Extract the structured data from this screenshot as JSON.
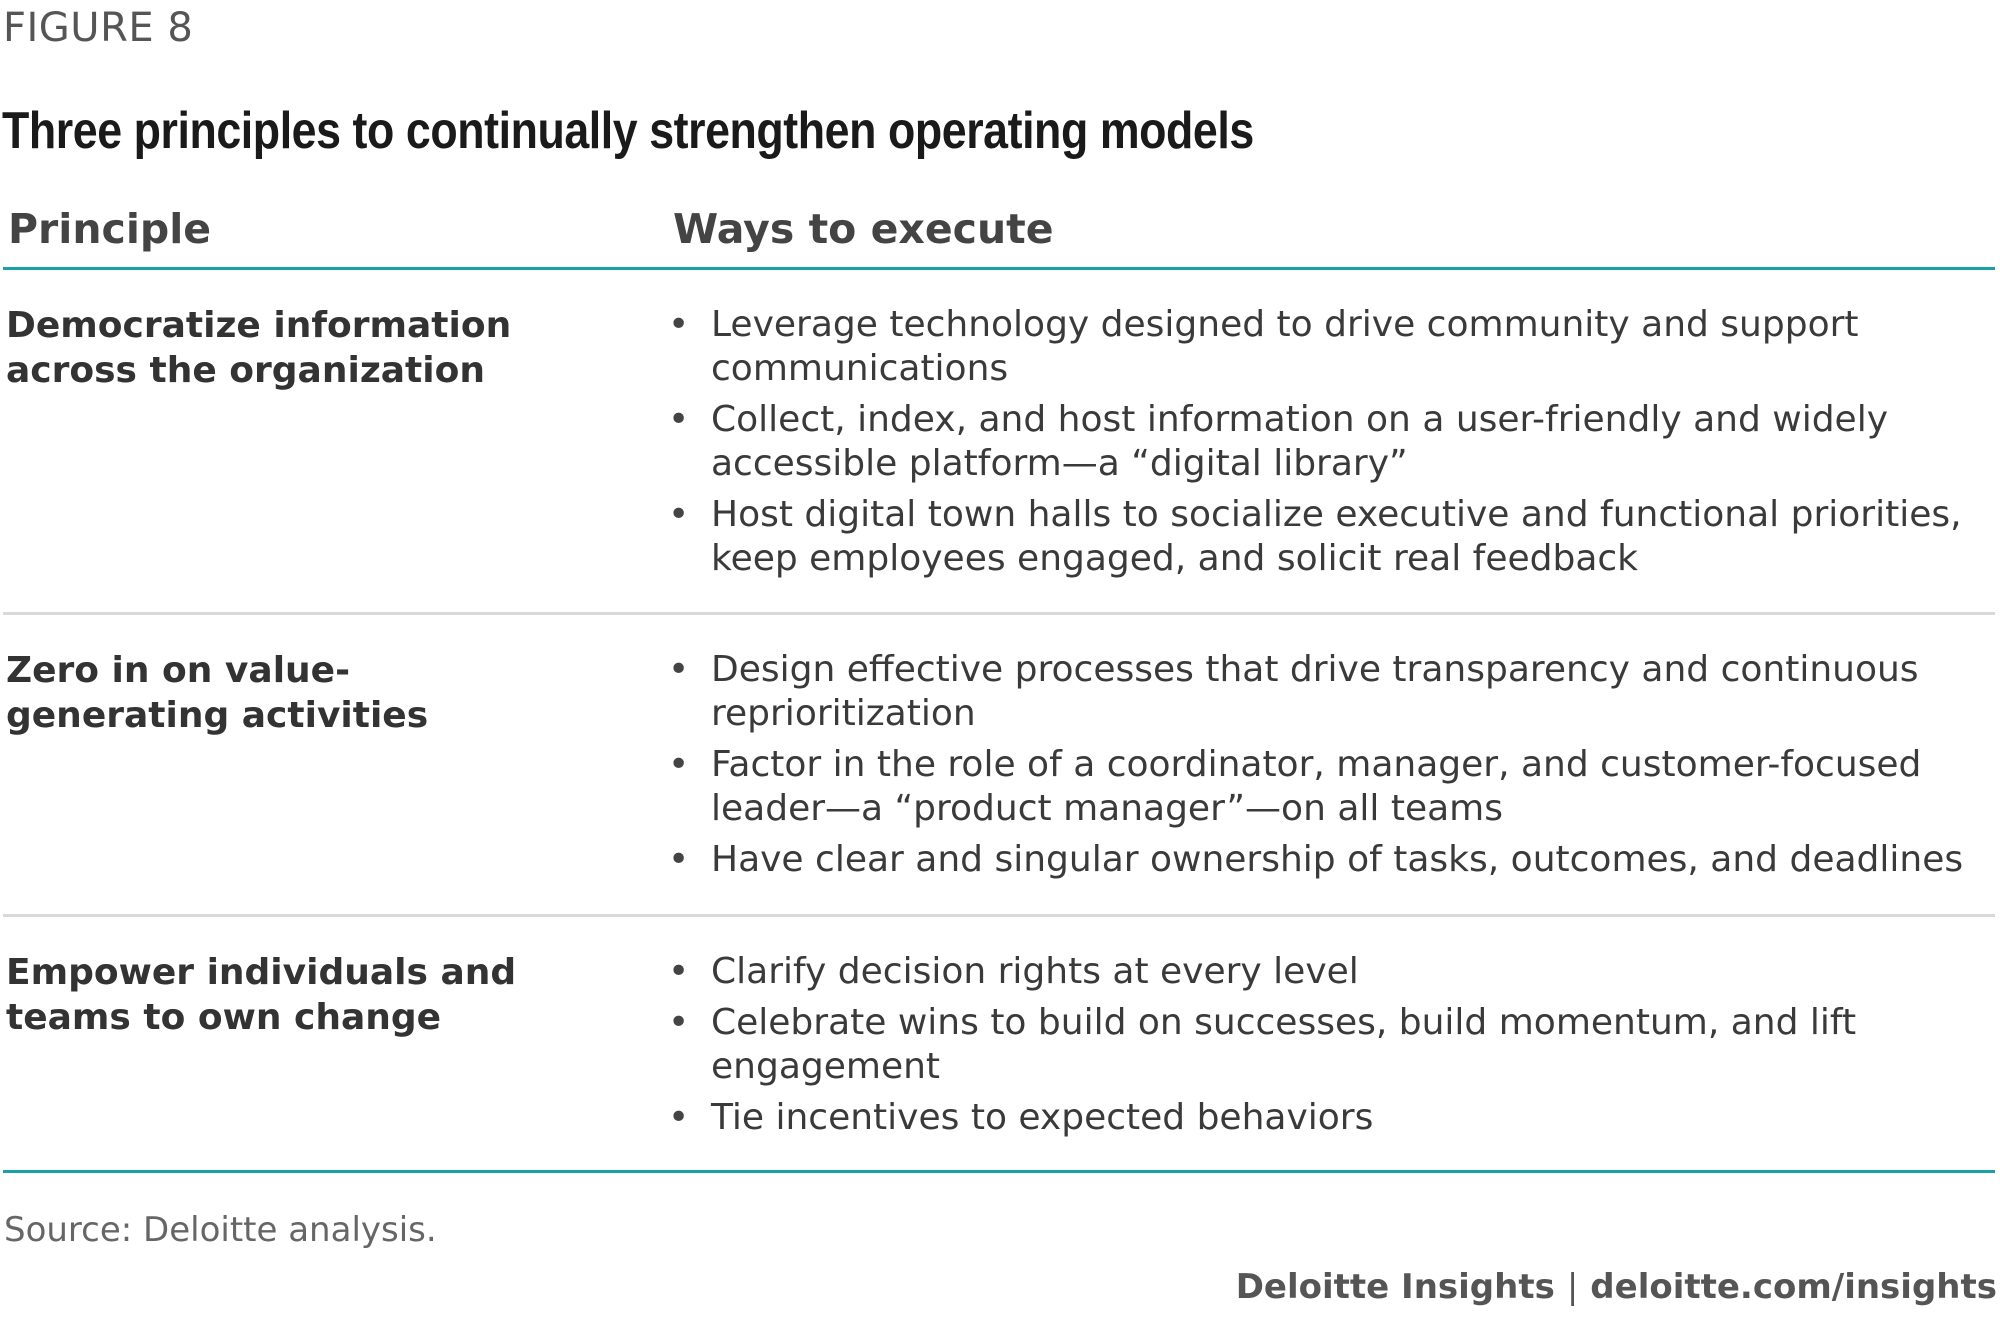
{
  "figure": {
    "label": "FIGURE 8",
    "title": "Three principles to continually strengthen operating models"
  },
  "table": {
    "headers": {
      "principle": "Principle",
      "ways": "Ways to execute"
    },
    "rows": [
      {
        "principle": "Democratize information across the organization",
        "ways": [
          "Leverage technology designed to drive community and support communications",
          "Collect, index, and host information on a user-friendly and widely accessible platform—a “digital library”",
          "Host digital town halls to socialize executive and functional priorities, keep employees engaged, and solicit real feedback"
        ]
      },
      {
        "principle": "Zero in on value-generating activities",
        "ways": [
          "Design effective processes that drive transparency and continuous reprioritization",
          "Factor in the role of a coordinator, manager, and customer-focused leader—a “product manager”—on all teams",
          "Have clear and singular ownership of tasks, outcomes, and deadlines"
        ]
      },
      {
        "principle": "Empower individuals and teams to own change",
        "ways": [
          "Clarify decision rights at every level",
          "Celebrate wins to build on successes, build momentum, and lift engagement",
          "Tie incentives to expected behaviors"
        ]
      }
    ],
    "bullet_glyph": "•"
  },
  "footer": {
    "source": "Source: Deloitte analysis.",
    "brand": "Deloitte Insights",
    "separator": "|",
    "url": "deloitte.com/insights"
  },
  "colors": {
    "accent_rule": "#1aa0a6",
    "divider": "#d9d9d9"
  }
}
